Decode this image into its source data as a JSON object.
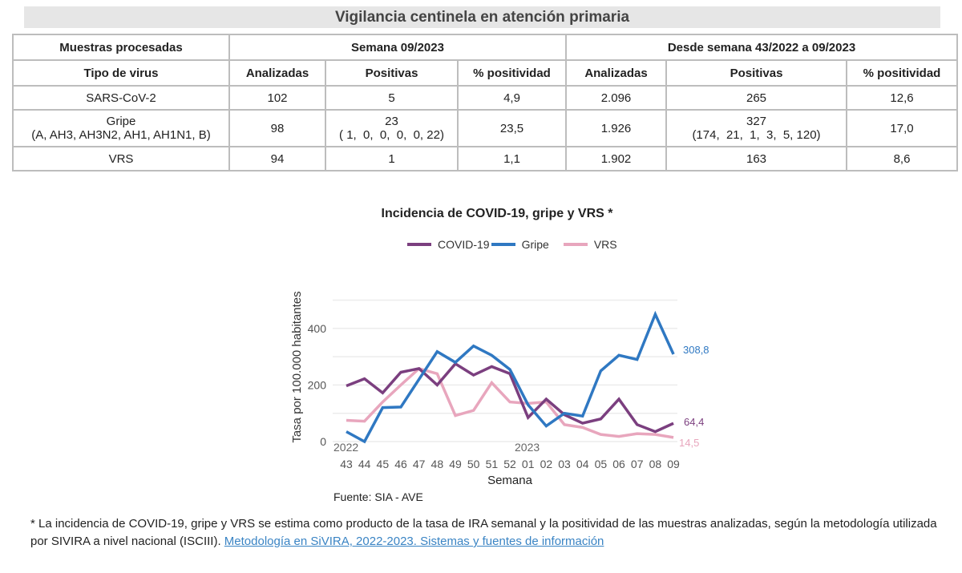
{
  "title": "Vigilancia centinela en atención primaria",
  "table": {
    "header_row1": [
      "Muestras procesadas",
      "Semana 09/2023",
      "Desde semana 43/2022 a 09/2023"
    ],
    "header_row2": [
      "Tipo de virus",
      "Analizadas",
      "Positivas",
      "% positividad",
      "Analizadas",
      "Positivas",
      "% positividad"
    ],
    "rows": [
      {
        "virus": "SARS-CoV-2",
        "virus_sub": "",
        "w_analizadas": "102",
        "w_positivas": "5",
        "w_positivas_sub": "",
        "w_pct": "4,9",
        "c_analizadas": "2.096",
        "c_positivas": "265",
        "c_positivas_sub": "",
        "c_pct": "12,6"
      },
      {
        "virus": "Gripe",
        "virus_sub": "(A, AH3, AH3N2, AH1, AH1N1, B)",
        "w_analizadas": "98",
        "w_positivas": "23",
        "w_positivas_sub": "( 1,  0,  0,  0,  0, 22)",
        "w_pct": "23,5",
        "c_analizadas": "1.926",
        "c_positivas": "327",
        "c_positivas_sub": "(174,  21,  1,  3,  5, 120)",
        "c_pct": "17,0"
      },
      {
        "virus": "VRS",
        "virus_sub": "",
        "w_analizadas": "94",
        "w_positivas": "1",
        "w_positivas_sub": "",
        "w_pct": "1,1",
        "c_analizadas": "1.902",
        "c_positivas": "163",
        "c_positivas_sub": "",
        "c_pct": "8,6"
      }
    ]
  },
  "chart": {
    "title": "Incidencia de COVID-19, gripe y VRS *",
    "source": "Fuente: SIA - AVE",
    "year_labels": [
      "2022",
      "2023"
    ],
    "end_labels": {
      "covid": "64,4",
      "gripe": "308,8",
      "vrs": "14,5"
    }
  },
  "chart_data": {
    "type": "line",
    "title": "Incidencia de COVID-19, gripe y VRS *",
    "xlabel": "Semana",
    "ylabel": "Tasa por 100.000 habitantes",
    "categories": [
      "43",
      "44",
      "45",
      "46",
      "47",
      "48",
      "49",
      "50",
      "51",
      "52",
      "01",
      "02",
      "03",
      "04",
      "05",
      "06",
      "07",
      "08",
      "09"
    ],
    "yticks": [
      0,
      200,
      400
    ],
    "ylim": [
      0,
      500
    ],
    "grid": true,
    "legend_position": "top",
    "series": [
      {
        "name": "COVID-19",
        "color": "#7b3f7f",
        "values": [
          197,
          222,
          172,
          245,
          258,
          200,
          275,
          235,
          265,
          240,
          85,
          150,
          95,
          65,
          80,
          150,
          60,
          35,
          64.4
        ]
      },
      {
        "name": "Gripe",
        "color": "#2f78c2",
        "values": [
          35,
          0,
          120,
          122,
          220,
          318,
          280,
          338,
          305,
          255,
          130,
          55,
          100,
          90,
          250,
          305,
          290,
          450,
          308.8
        ]
      },
      {
        "name": "VRS",
        "color": "#e8a6bd",
        "values": [
          75,
          72,
          140,
          200,
          258,
          240,
          92,
          110,
          208,
          140,
          135,
          140,
          60,
          50,
          25,
          18,
          28,
          25,
          14.5
        ]
      }
    ]
  },
  "footnote": {
    "text": "* La incidencia de COVID-19, gripe y VRS se estima como producto de la tasa de IRA semanal y la positividad de las muestras analizadas, según la metodología utilizada por SIVIRA a nivel nacional (ISCIII). ",
    "link": "Metodología en SiVIRA, 2022-2023. Sistemas y fuentes de información"
  }
}
